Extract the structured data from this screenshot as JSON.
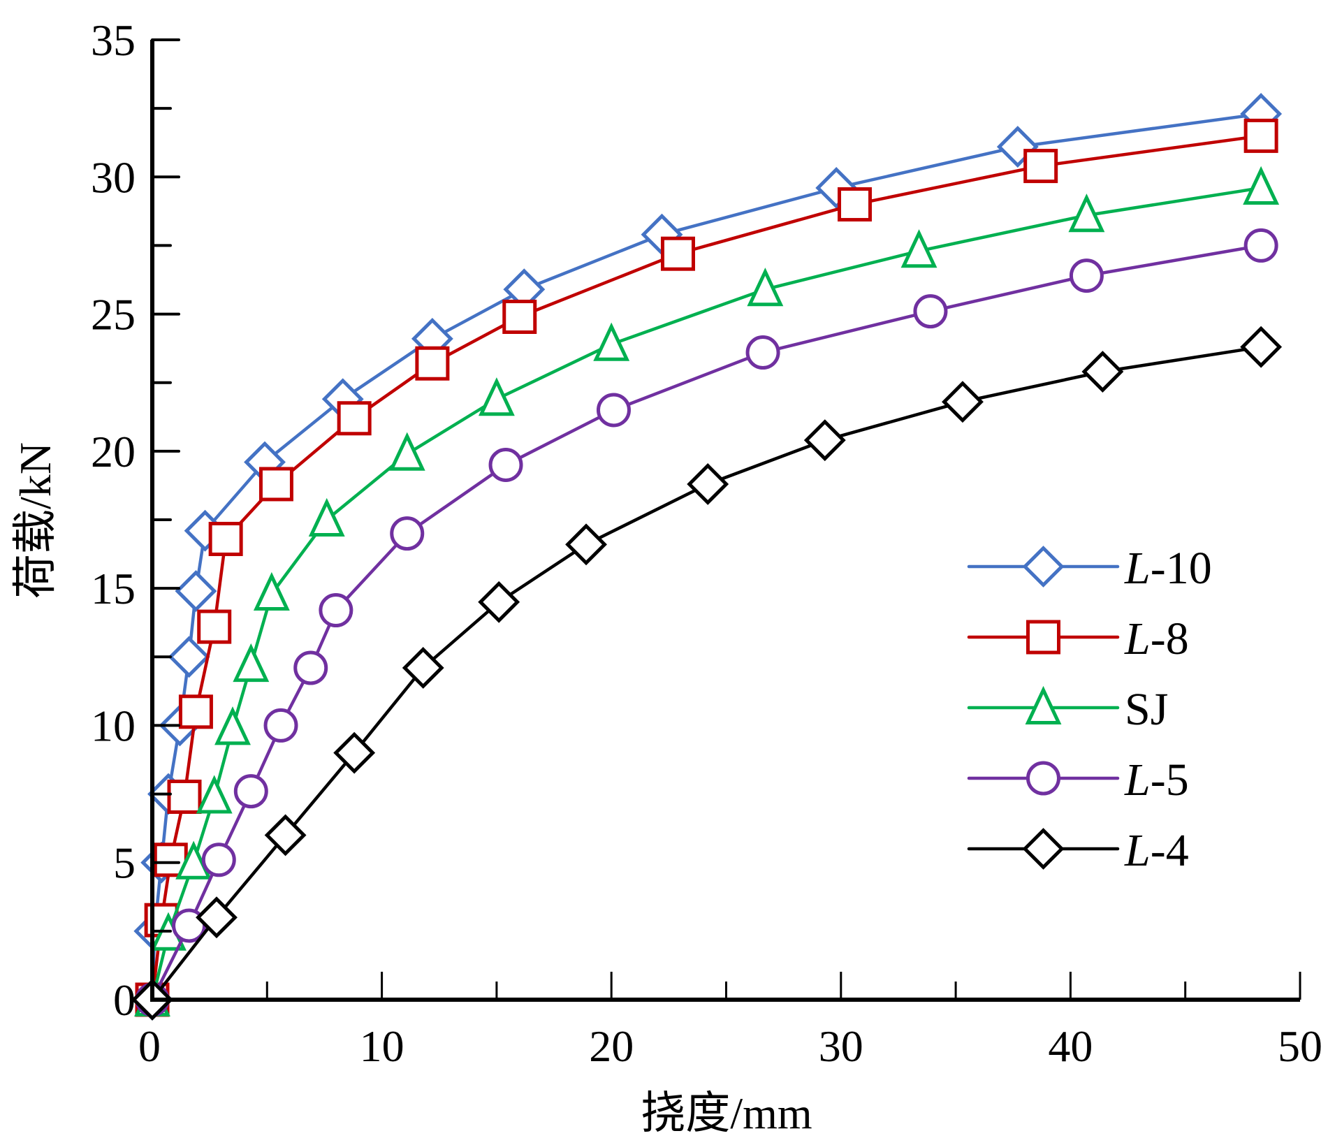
{
  "chart_data": {
    "type": "line",
    "title": "",
    "xlabel": "挠度/mm",
    "ylabel": "荷载/kN",
    "xlim": [
      0,
      50
    ],
    "ylim": [
      0,
      35
    ],
    "xticks": [
      0,
      10,
      20,
      30,
      40,
      50
    ],
    "yticks": [
      0,
      5,
      10,
      15,
      20,
      25,
      30,
      35
    ],
    "x_minor_step": 5,
    "y_minor_step": 2.5,
    "grid": false,
    "legend_position": "center-right",
    "series": [
      {
        "name": "L-10",
        "name_italic_part": "L",
        "name_rest": "-10",
        "color": "#4472C4",
        "marker": "diamond",
        "x": [
          0,
          0.1,
          0.4,
          0.7,
          1.2,
          1.6,
          1.9,
          2.3,
          4.9,
          8.3,
          12.2,
          16.2,
          22.2,
          29.8,
          37.7,
          48.3
        ],
        "y": [
          0,
          2.5,
          5.0,
          7.5,
          10.0,
          12.5,
          14.9,
          17.1,
          19.6,
          21.9,
          24.1,
          25.9,
          27.9,
          29.6,
          31.1,
          32.3
        ]
      },
      {
        "name": "L-8",
        "name_italic_part": "L",
        "name_rest": "-8",
        "color": "#C00000",
        "marker": "square",
        "x": [
          0,
          0.4,
          0.8,
          1.4,
          1.9,
          2.7,
          3.2,
          5.4,
          8.8,
          12.2,
          16.0,
          22.9,
          30.6,
          38.7,
          48.3
        ],
        "y": [
          0,
          2.9,
          5.1,
          7.4,
          10.5,
          13.6,
          16.8,
          18.8,
          21.2,
          23.2,
          24.9,
          27.2,
          29.0,
          30.4,
          31.5
        ]
      },
      {
        "name": "SJ",
        "name_italic_part": "",
        "name_rest": "SJ",
        "color": "#00B050",
        "marker": "triangle",
        "x": [
          0,
          0.7,
          1.8,
          2.7,
          3.5,
          4.3,
          5.2,
          7.6,
          11.1,
          15.0,
          20.0,
          26.7,
          33.4,
          40.7,
          48.3
        ],
        "y": [
          0,
          2.4,
          5.0,
          7.4,
          9.9,
          12.2,
          14.8,
          17.5,
          19.9,
          21.9,
          23.9,
          25.9,
          27.3,
          28.6,
          29.6
        ]
      },
      {
        "name": "L-5",
        "name_italic_part": "L",
        "name_rest": "-5",
        "color": "#7030A0",
        "marker": "circle",
        "x": [
          0,
          1.6,
          2.9,
          4.3,
          5.6,
          6.9,
          8.0,
          11.1,
          15.4,
          20.1,
          26.6,
          33.9,
          40.7,
          48.3
        ],
        "y": [
          0,
          2.7,
          5.1,
          7.6,
          10.0,
          12.1,
          14.2,
          17.0,
          19.5,
          21.5,
          23.6,
          25.1,
          26.4,
          27.5
        ]
      },
      {
        "name": "L-4",
        "name_italic_part": "L",
        "name_rest": "-4",
        "color": "#000000",
        "marker": "diamond",
        "x": [
          0,
          2.8,
          5.8,
          8.8,
          11.8,
          15.1,
          18.9,
          24.2,
          29.3,
          35.3,
          41.4,
          48.3
        ],
        "y": [
          0,
          3.0,
          6.0,
          9.0,
          12.1,
          14.5,
          16.6,
          18.8,
          20.4,
          21.8,
          22.9,
          23.8
        ]
      }
    ]
  }
}
